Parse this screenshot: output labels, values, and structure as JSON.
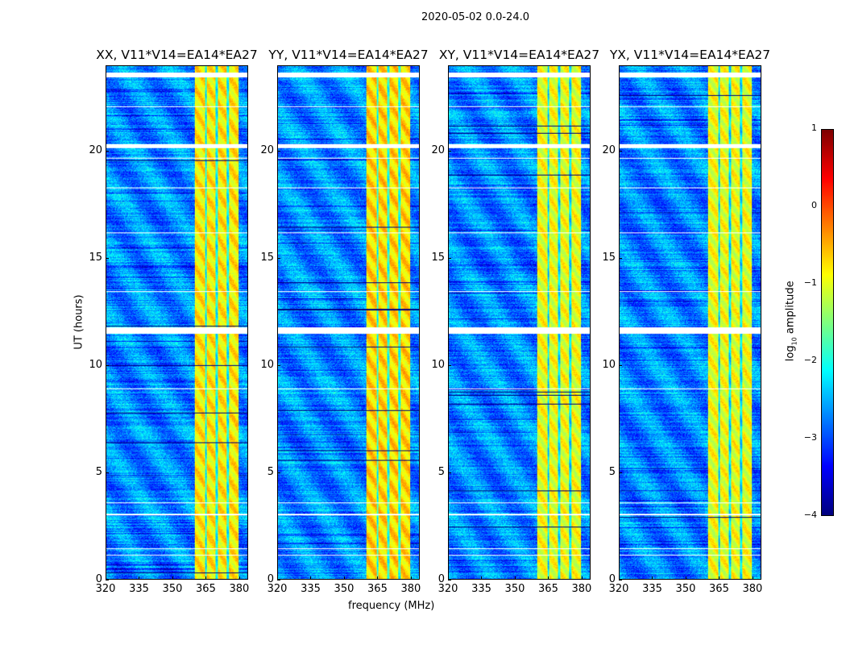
{
  "chart_data": {
    "type": "heatmap",
    "title": "2020-05-02 0.0-24.0",
    "xlabel": "frequency (MHz)",
    "ylabel": "UT (hours)",
    "xlim": [
      320,
      384
    ],
    "ylim": [
      0,
      24
    ],
    "xticks": [
      "320",
      "335",
      "350",
      "365",
      "380"
    ],
    "xtick_values": [
      320,
      335,
      350,
      365,
      380
    ],
    "yticks": [
      "0",
      "5",
      "10",
      "15",
      "20"
    ],
    "ytick_values": [
      0,
      5,
      10,
      15,
      20
    ],
    "panels": [
      {
        "title": "XX, V11*V14=EA14*EA27",
        "band_level": -0.8
      },
      {
        "title": "YY, V11*V14=EA14*EA27",
        "band_level": -0.7
      },
      {
        "title": "XY, V11*V14=EA14*EA27",
        "band_level": -0.95
      },
      {
        "title": "YX, V11*V14=EA14*EA27",
        "band_level": -0.95
      }
    ],
    "bright_band_mhz": [
      360,
      380
    ],
    "subband_edges_mhz": [
      365,
      370,
      375
    ],
    "background_level": -2.7,
    "flagged_gaps_hours": [
      [
        23.48,
        23.7
      ],
      [
        22.1,
        22.15
      ],
      [
        20.2,
        20.38
      ],
      [
        19.7,
        19.74
      ],
      [
        18.3,
        18.34
      ],
      [
        16.2,
        16.25
      ],
      [
        13.45,
        13.5
      ],
      [
        11.48,
        11.78
      ],
      [
        8.9,
        8.95
      ],
      [
        3.55,
        3.6
      ],
      [
        3.0,
        3.05
      ],
      [
        1.4,
        1.45
      ],
      [
        1.1,
        1.14
      ]
    ],
    "colorbar": {
      "label": "log10 amplitude",
      "label_main": "log",
      "label_sub": "10",
      "label_rest": " amplitude",
      "range": [
        -4,
        1
      ],
      "ticks": [
        "1",
        "0",
        "−1",
        "−2",
        "−3",
        "−4"
      ],
      "tick_values": [
        1,
        0,
        -1,
        -2,
        -3,
        -4
      ],
      "colormap": "jet"
    }
  }
}
